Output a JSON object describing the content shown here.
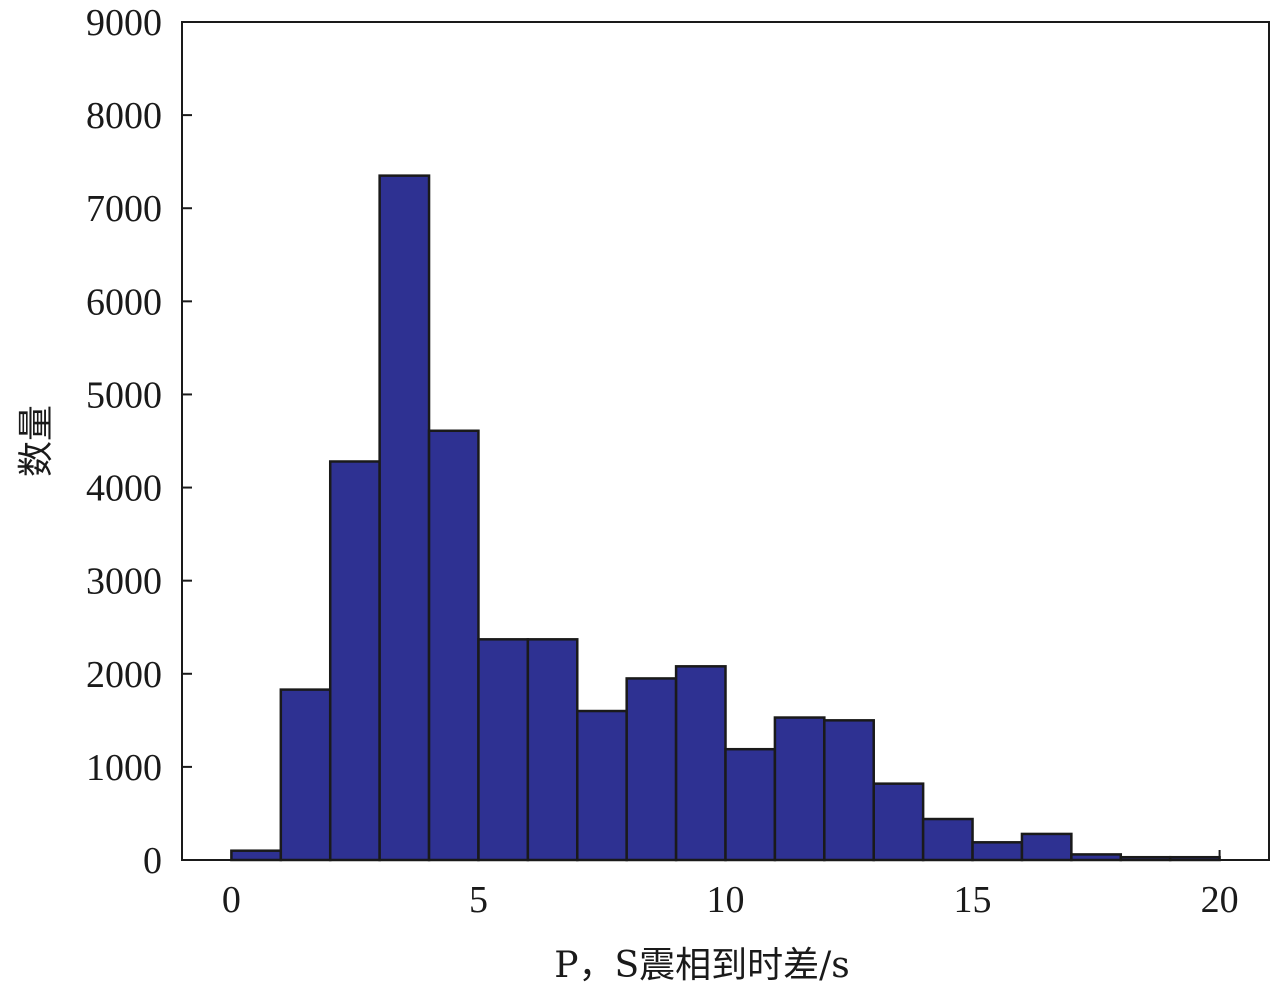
{
  "chart_data": {
    "type": "bar",
    "title": "",
    "xlabel": "P，S震相到时差/s",
    "ylabel": "数量",
    "xlim": [
      -1,
      21
    ],
    "ylim": [
      0,
      9000
    ],
    "x_ticks": [
      0,
      5,
      10,
      15,
      20
    ],
    "y_ticks": [
      0,
      1000,
      2000,
      3000,
      4000,
      5000,
      6000,
      7000,
      8000,
      9000
    ],
    "bin_edges": [
      0,
      1,
      2,
      3,
      4,
      5,
      6,
      7,
      8,
      9,
      10,
      11,
      12,
      13,
      14,
      15,
      16,
      17,
      18,
      19,
      20
    ],
    "values": [
      100,
      1830,
      4280,
      7350,
      4610,
      2370,
      2370,
      1600,
      1950,
      2080,
      1190,
      1530,
      1500,
      820,
      440,
      190,
      280,
      60,
      30,
      30
    ],
    "bar_color": "#2e3192",
    "grid": false,
    "legend": "none"
  }
}
